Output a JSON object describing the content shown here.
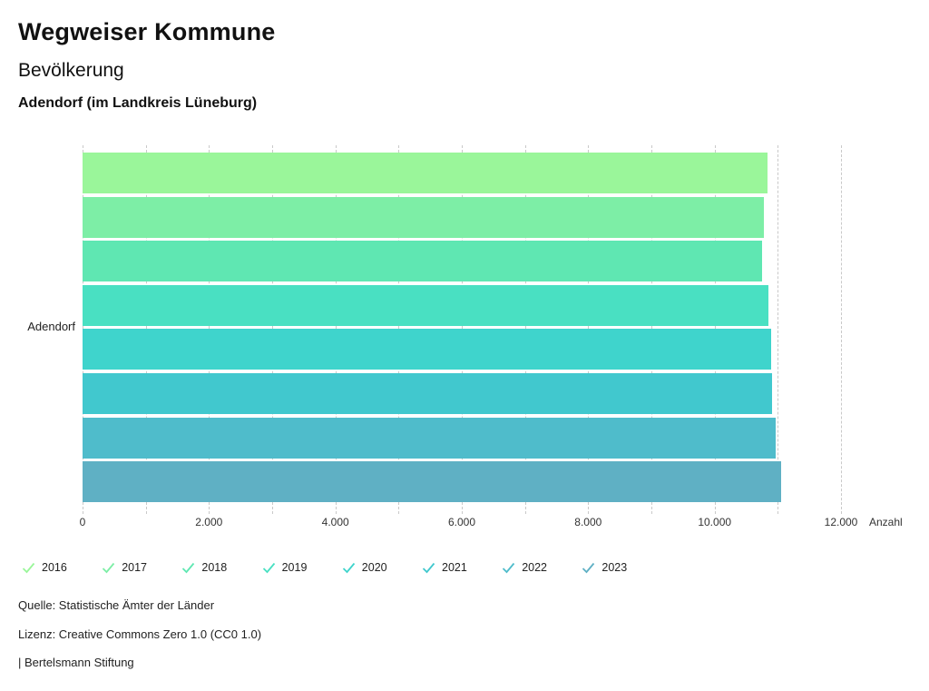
{
  "header": {
    "title": "Wegweiser Kommune",
    "subtitle": "Bevölkerung",
    "location": "Adendorf (im Landkreis Lüneburg)"
  },
  "chart_data": {
    "type": "bar",
    "orientation": "horizontal",
    "title": "Bevölkerung",
    "subtitle": "Adendorf (im Landkreis Lüneburg)",
    "categories": [
      "Adendorf"
    ],
    "series": [
      {
        "name": "2016",
        "values": [
          10830
        ],
        "color": "#9af69a"
      },
      {
        "name": "2017",
        "values": [
          10780
        ],
        "color": "#7deea6"
      },
      {
        "name": "2018",
        "values": [
          10750
        ],
        "color": "#5fe7b2"
      },
      {
        "name": "2019",
        "values": [
          10850
        ],
        "color": "#49e0c2"
      },
      {
        "name": "2020",
        "values": [
          10890
        ],
        "color": "#3fd4cc"
      },
      {
        "name": "2021",
        "values": [
          10910
        ],
        "color": "#41c8ce"
      },
      {
        "name": "2022",
        "values": [
          10960
        ],
        "color": "#4fbccb"
      },
      {
        "name": "2023",
        "values": [
          11050
        ],
        "color": "#5fb0c4"
      }
    ],
    "xlabel": "Anzahl",
    "ylabel": "",
    "xlim": [
      0,
      12000
    ],
    "x_major_ticks": [
      0,
      2000,
      4000,
      6000,
      8000,
      10000,
      12000
    ],
    "x_tick_labels": [
      "0",
      "2.000",
      "4.000",
      "6.000",
      "8.000",
      "10.000",
      "12.000"
    ],
    "x_minor_tick_step": 1000,
    "grid": "vertical-dashed",
    "grid_color": "#c9c9c9",
    "legend_position": "bottom",
    "legend_marker": "checkmark"
  },
  "footer": {
    "source": "Quelle: Statistische Ämter der Länder",
    "license": "Lizenz: Creative Commons Zero 1.0 (CC0 1.0)",
    "attribution": "| Bertelsmann Stiftung"
  }
}
